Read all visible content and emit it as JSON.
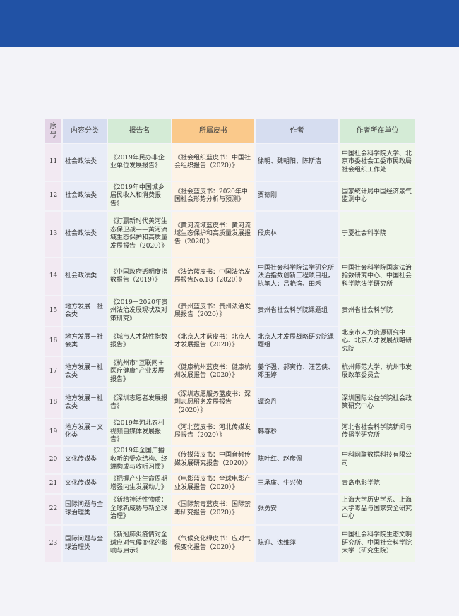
{
  "header_band_color": "#2152a5",
  "table": {
    "headers": [
      "序号",
      "内容分类",
      "报告名",
      "所属皮书",
      "作者",
      "作者所在单位"
    ],
    "rows": [
      [
        "11",
        "社会政法类",
        "《2019年民办非企业单位发展报告》",
        "《社会组织蓝皮书：中国社会组织报告（2020）》",
        "徐明、魏朝阳、陈斯洁",
        "中国社会科学院大学、北京市委社会工委市民政局社会组织工作处"
      ],
      [
        "12",
        "社会政法类",
        "《2019年中国城乡居民收入和消费报告》",
        "《社会蓝皮书：2020年中国社会形势分析与预测》",
        "贾德刚",
        "国家统计局中国经济景气监测中心"
      ],
      [
        "13",
        "社会政法类",
        "《打赢新时代黄河生态保卫战——黄河流域生态保护和高质量发展报告（2020）》",
        "《黄河流域蓝皮书：黄河流域生态保护和高质量发展报告（2020）》",
        "段庆林",
        "宁夏社会科学院"
      ],
      [
        "14",
        "社会政法类",
        "《中国政府透明度指数报告（2019）》",
        "《法治蓝皮书：中国法治发展报告No.18（2020）》",
        "中国社会科学院法学研究所法治指数创新工程项目组，执笔人：吕艳滨、田禾",
        "中国社会科学院国家法治指数研究中心、中国社会科学院法学研究所"
      ],
      [
        "15",
        "地方发展－社会类",
        "《2019－2020年贵州法治发展现状及对策研究》",
        "《贵州蓝皮书：贵州法治发展报告（2020）》",
        "贵州省社会科学院课题组",
        "贵州省社会科学院"
      ],
      [
        "16",
        "地方发展－社会类",
        "《城市人才黏性指数报告》",
        "《北京人才蓝皮书：北京人才发展报告（2020）》",
        "北京人才发展战略研究院课题组",
        "北京市人力资源研究中心、北京人才发展战略研究院"
      ],
      [
        "17",
        "地方发展－社会类",
        "《杭州市“互联网＋医疗健康”产业发展报告》",
        "《健康杭州蓝皮书：健康杭州发展报告（2020）》",
        "姜华强、郝寅竹、汪艺侠、邓玉婷",
        "杭州师范大学、杭州市发展改革委员会"
      ],
      [
        "18",
        "地方发展－社会类",
        "《深圳志愿者发展报告》",
        "《深圳志愿服务蓝皮书：深圳志愿服务发展报告（2020）》",
        "谭逸丹",
        "深圳国际公益学院社会政策研究中心"
      ],
      [
        "19",
        "地方发展－文化类",
        "《2019年河北农村视频自媒体发展报告》",
        "《河北蓝皮书：河北传媒发展报告（2020）》",
        "韩春秒",
        "河北省社会科学院新闻与传播学研究所"
      ],
      [
        "20",
        "文化传媒类",
        "《2019年全国广播收听的受众结构、终端构成与收听习惯》",
        "《传媒蓝皮书：中国音频传媒发展研究报告（2020）》",
        "陈叶红、赵彦佩",
        "中科网联数据科技有限公司"
      ],
      [
        "21",
        "文化传媒类",
        "《把握产业生命周期增强内生发展动力》",
        "《电影蓝皮书：全球电影产业发展报告（2020）》",
        "王承廉、牛兴侦",
        "青岛电影学院"
      ],
      [
        "22",
        "国际问题与全球治理类",
        "《新精神活性物质：全球新威胁与新全球治理》",
        "《国际禁毒蓝皮书：国际禁毒研究报告（2020）》",
        "张勇安",
        "上海大学历史学系、上海大学毒品与国家安全研究中心"
      ],
      [
        "23",
        "国际问题与全球治理类",
        "《新冠肺炎疫情对全球应对气候变化的影响与启示》",
        "《气候变化绿皮书：应对气候变化报告（2020）》",
        "陈迎、沈维萍",
        "中国社会科学院生态文明研究所、中国社会科学院大学（研究生院）"
      ]
    ]
  }
}
